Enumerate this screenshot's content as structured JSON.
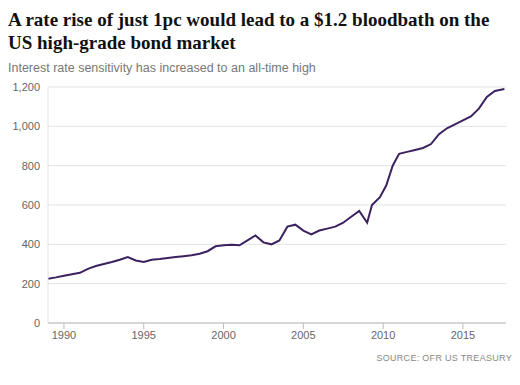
{
  "chart_data": {
    "type": "line",
    "title": "A rate rise of just 1pc would lead to a $1.2 bloodbath on the US high-grade bond market",
    "subtitle": "Interest rate sensitivity has increased to an all-time high",
    "source": "SOURCE: OFR US TREASURY",
    "x": [
      1989,
      1989.5,
      1990,
      1990.5,
      1991,
      1991.5,
      1992,
      1992.5,
      1993,
      1993.5,
      1994,
      1994.5,
      1995,
      1995.5,
      1996,
      1996.5,
      1997,
      1997.5,
      1998,
      1998.5,
      1999,
      1999.5,
      2000,
      2000.5,
      2001,
      2001.5,
      2002,
      2002.5,
      2003,
      2003.5,
      2004,
      2004.5,
      2005,
      2005.5,
      2006,
      2006.5,
      2007,
      2007.5,
      2008,
      2008.5,
      2009,
      2009.3,
      2009.8,
      2010.2,
      2010.6,
      2011,
      2011.5,
      2012,
      2012.5,
      2013,
      2013.5,
      2014,
      2014.5,
      2015,
      2015.5,
      2016,
      2016.5,
      2017,
      2017.6
    ],
    "values": [
      225,
      232,
      240,
      248,
      255,
      275,
      290,
      300,
      310,
      322,
      335,
      318,
      310,
      322,
      325,
      330,
      335,
      340,
      345,
      352,
      365,
      390,
      395,
      398,
      395,
      420,
      445,
      410,
      400,
      420,
      490,
      500,
      470,
      450,
      470,
      480,
      490,
      510,
      540,
      570,
      510,
      600,
      640,
      700,
      800,
      860,
      870,
      880,
      890,
      910,
      960,
      990,
      1010,
      1030,
      1050,
      1090,
      1150,
      1180,
      1190
    ],
    "color": "#3b2160",
    "xlim": [
      1989,
      2017.7
    ],
    "xticks": [
      1990,
      1995,
      2000,
      2005,
      2010,
      2015
    ],
    "ylim": [
      0,
      1200
    ],
    "yticks": [
      0,
      200,
      400,
      600,
      800,
      {
        "value": 1000,
        "label": "1,000"
      },
      {
        "value": 1200,
        "label": "1,200"
      }
    ],
    "grid": true
  }
}
